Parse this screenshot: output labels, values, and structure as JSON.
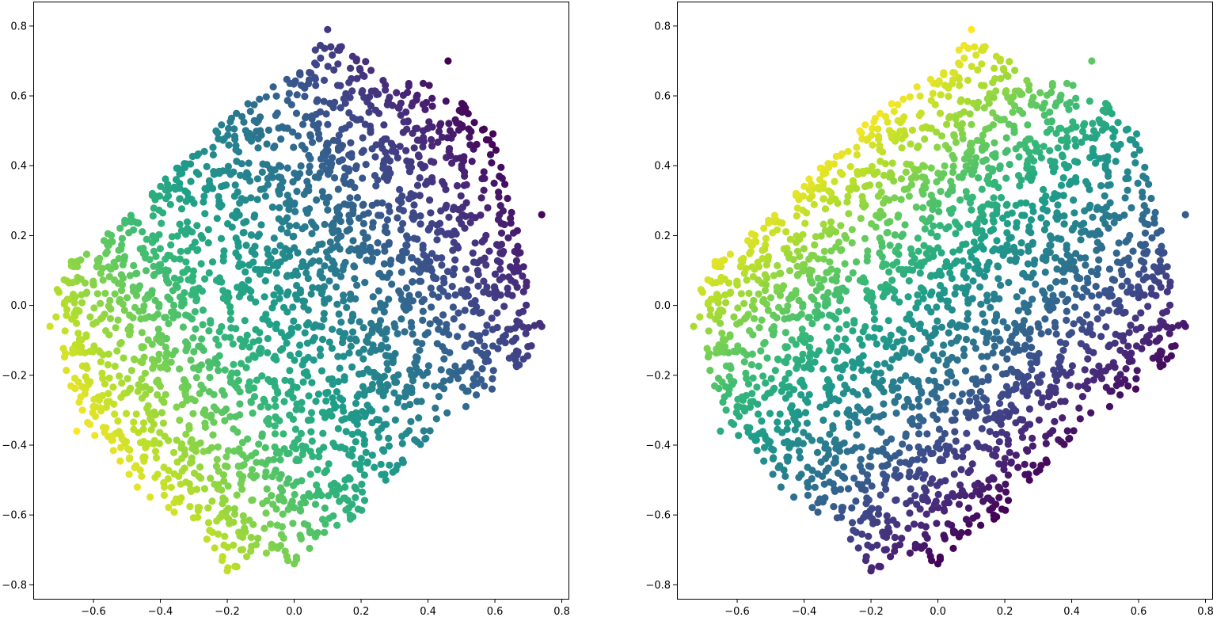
{
  "figure": {
    "colormap": "viridis",
    "colormap_stops": [
      "#440154",
      "#482878",
      "#3e4989",
      "#31688e",
      "#26828e",
      "#1f9e89",
      "#35b779",
      "#6ece58",
      "#b5de2b",
      "#fde725"
    ]
  },
  "chart_data": [
    {
      "type": "scatter",
      "title": "",
      "xlabel": "",
      "ylabel": "",
      "xlim": [
        -0.78,
        0.82
      ],
      "ylim": [
        -0.84,
        0.87
      ],
      "xticks": [
        -0.6,
        -0.4,
        -0.2,
        0.0,
        0.2,
        0.4,
        0.6,
        0.8
      ],
      "xtick_labels": [
        "−0.6",
        "−0.4",
        "−0.2",
        "0.0",
        "0.2",
        "0.4",
        "0.6",
        "0.8"
      ],
      "yticks": [
        -0.8,
        -0.6,
        -0.4,
        -0.2,
        0.0,
        0.2,
        0.4,
        0.6,
        0.8
      ],
      "ytick_labels": [
        "−0.8",
        "−0.6",
        "−0.4",
        "−0.2",
        "0.0",
        "0.2",
        "0.4",
        "0.6",
        "0.8"
      ],
      "grid": false,
      "color_by": "first component (purple at upper-right, yellow at lower-left)",
      "color_direction": [
        -0.82,
        -0.57
      ],
      "points": {
        "region_polygon": [
          [
            -0.72,
            0.02
          ],
          [
            -0.68,
            0.12
          ],
          [
            -0.55,
            0.21
          ],
          [
            -0.42,
            0.33
          ],
          [
            -0.28,
            0.46
          ],
          [
            -0.15,
            0.58
          ],
          [
            0.0,
            0.68
          ],
          [
            0.1,
            0.79
          ],
          [
            0.18,
            0.72
          ],
          [
            0.3,
            0.66
          ],
          [
            0.45,
            0.62
          ],
          [
            0.58,
            0.52
          ],
          [
            0.63,
            0.42
          ],
          [
            0.66,
            0.25
          ],
          [
            0.7,
            0.1
          ],
          [
            0.74,
            -0.06
          ],
          [
            0.68,
            -0.18
          ],
          [
            0.6,
            -0.24
          ],
          [
            0.5,
            -0.3
          ],
          [
            0.4,
            -0.38
          ],
          [
            0.28,
            -0.5
          ],
          [
            0.2,
            -0.6
          ],
          [
            0.08,
            -0.66
          ],
          [
            0.02,
            -0.74
          ],
          [
            -0.1,
            -0.72
          ],
          [
            -0.2,
            -0.76
          ],
          [
            -0.3,
            -0.64
          ],
          [
            -0.45,
            -0.54
          ],
          [
            -0.6,
            -0.4
          ],
          [
            -0.66,
            -0.3
          ],
          [
            -0.7,
            -0.12
          ]
        ],
        "count": 2400,
        "outliers": [
          [
            0.1,
            0.79
          ],
          [
            0.46,
            0.7
          ],
          [
            0.74,
            0.26
          ],
          [
            0.74,
            -0.06
          ],
          [
            -0.73,
            -0.06
          ],
          [
            -0.65,
            -0.36
          ],
          [
            -0.2,
            -0.76
          ],
          [
            0.0,
            -0.74
          ],
          [
            0.13,
            0.63
          ]
        ]
      }
    },
    {
      "type": "scatter",
      "title": "",
      "xlabel": "",
      "ylabel": "",
      "xlim": [
        -0.78,
        0.82
      ],
      "ylim": [
        -0.84,
        0.87
      ],
      "xticks": [
        -0.6,
        -0.4,
        -0.2,
        0.0,
        0.2,
        0.4,
        0.6,
        0.8
      ],
      "xtick_labels": [
        "−0.6",
        "−0.4",
        "−0.2",
        "0.0",
        "0.2",
        "0.4",
        "0.6",
        "0.8"
      ],
      "yticks": [
        -0.8,
        -0.6,
        -0.4,
        -0.2,
        0.0,
        0.2,
        0.4,
        0.6,
        0.8
      ],
      "ytick_labels": [
        "−0.8",
        "−0.6",
        "−0.4",
        "−0.2",
        "0.0",
        "0.2",
        "0.4",
        "0.6",
        "0.8"
      ],
      "grid": false,
      "color_by": "second component (yellow at upper-left, purple at lower-right)",
      "color_direction": [
        -0.62,
        0.78
      ],
      "points": {
        "region_polygon": [
          [
            -0.72,
            0.02
          ],
          [
            -0.68,
            0.12
          ],
          [
            -0.55,
            0.21
          ],
          [
            -0.42,
            0.33
          ],
          [
            -0.28,
            0.46
          ],
          [
            -0.15,
            0.58
          ],
          [
            0.0,
            0.68
          ],
          [
            0.1,
            0.79
          ],
          [
            0.18,
            0.72
          ],
          [
            0.3,
            0.66
          ],
          [
            0.45,
            0.62
          ],
          [
            0.58,
            0.52
          ],
          [
            0.63,
            0.42
          ],
          [
            0.66,
            0.25
          ],
          [
            0.7,
            0.1
          ],
          [
            0.74,
            -0.06
          ],
          [
            0.68,
            -0.18
          ],
          [
            0.6,
            -0.24
          ],
          [
            0.5,
            -0.3
          ],
          [
            0.4,
            -0.38
          ],
          [
            0.28,
            -0.5
          ],
          [
            0.2,
            -0.6
          ],
          [
            0.08,
            -0.66
          ],
          [
            0.02,
            -0.74
          ],
          [
            -0.1,
            -0.72
          ],
          [
            -0.2,
            -0.76
          ],
          [
            -0.3,
            -0.64
          ],
          [
            -0.45,
            -0.54
          ],
          [
            -0.6,
            -0.4
          ],
          [
            -0.66,
            -0.3
          ],
          [
            -0.7,
            -0.12
          ]
        ],
        "count": 2400,
        "outliers": [
          [
            0.1,
            0.79
          ],
          [
            0.46,
            0.7
          ],
          [
            0.74,
            0.26
          ],
          [
            0.74,
            -0.06
          ],
          [
            -0.73,
            -0.06
          ],
          [
            -0.65,
            -0.36
          ],
          [
            -0.2,
            -0.76
          ],
          [
            0.0,
            -0.74
          ],
          [
            0.13,
            0.63
          ]
        ]
      }
    }
  ]
}
